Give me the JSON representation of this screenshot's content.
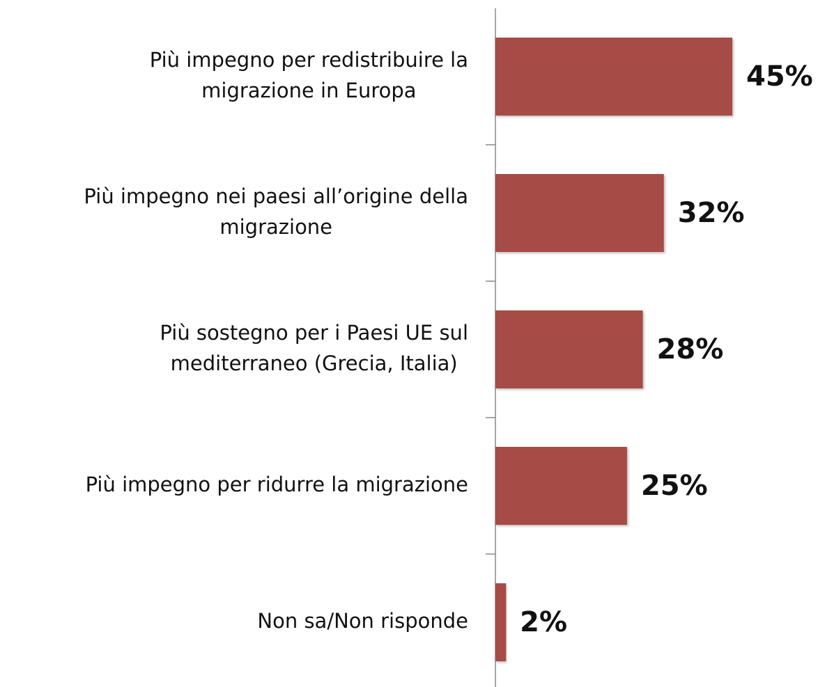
{
  "chart_data": {
    "type": "bar",
    "orientation": "horizontal",
    "categories": [
      [
        "Più impegno per redistribuire la",
        "migrazione in Europa"
      ],
      [
        "Più impegno nei paesi all’origine della",
        "migrazione"
      ],
      [
        "Più sostegno per i Paesi UE sul",
        "mediterraneo (Grecia, Italia)"
      ],
      [
        "Più impegno per ridurre la migrazione"
      ],
      [
        "Non sa/Non risponde"
      ]
    ],
    "values": [
      45,
      32,
      28,
      25,
      2
    ],
    "value_labels": [
      "45%",
      "32%",
      "28%",
      "25%",
      "2%"
    ],
    "color": "#a64b45"
  }
}
